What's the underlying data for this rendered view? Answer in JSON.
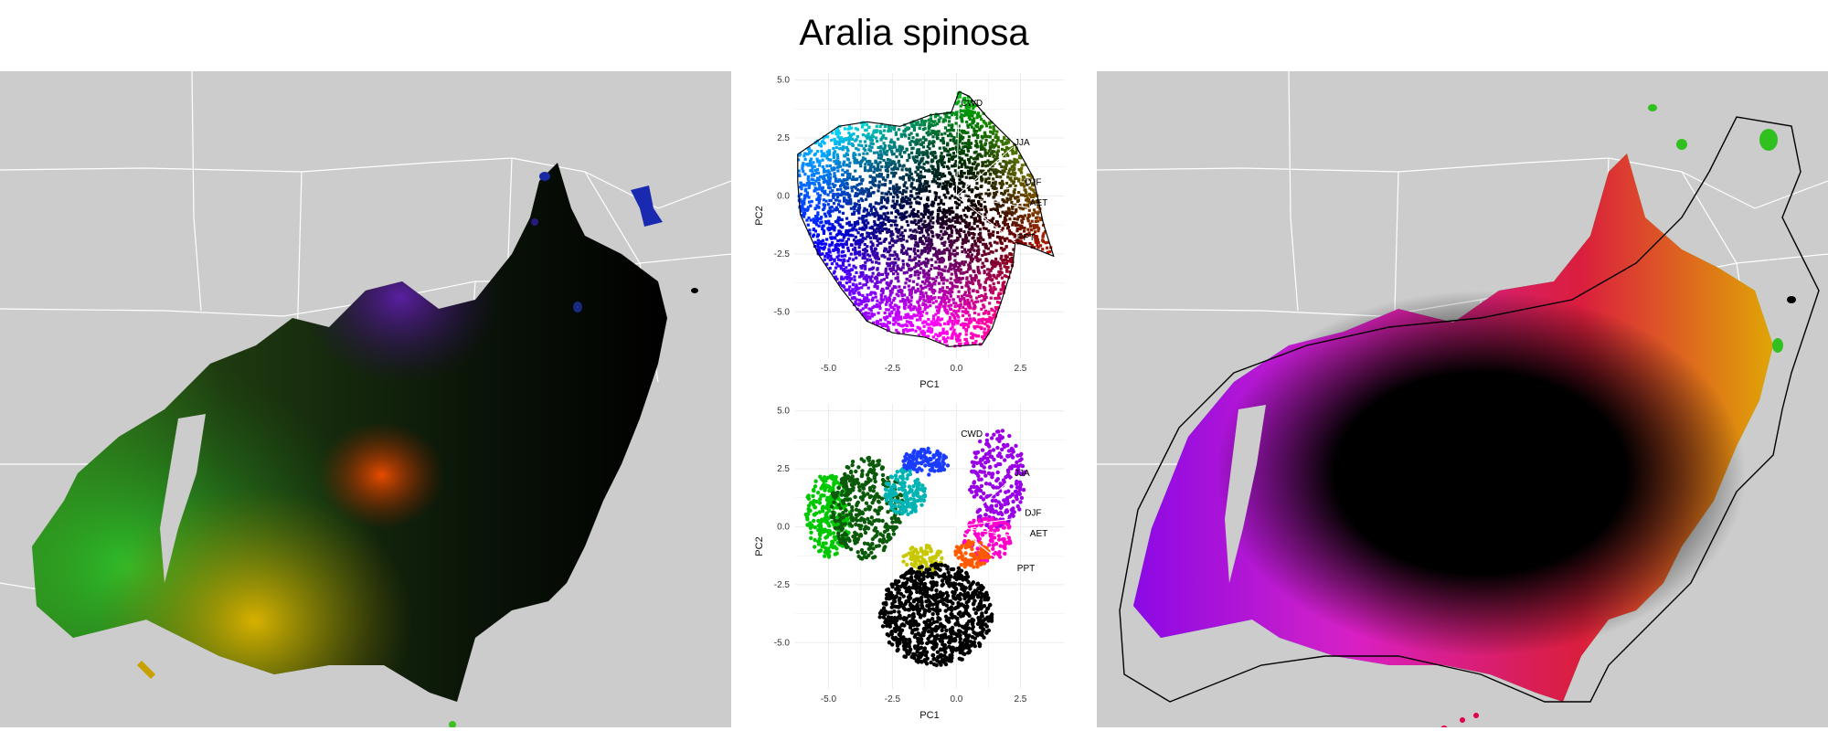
{
  "figure": {
    "title": "Aralia spinosa",
    "colors": {
      "map_land": "#cccccc",
      "state_borders": "#ffffff",
      "hull_outline": "#000000",
      "grid": "#ebebeb",
      "loading_arrows": "#ffffff"
    }
  },
  "chart_data": [
    {
      "type": "map",
      "panel": "left",
      "description_visible": "species range map colored by climate PCA"
    },
    {
      "type": "scatter",
      "panel": "pca-top",
      "xlabel": "PC1",
      "ylabel": "PC2",
      "xlim": [
        -6.3,
        4.2
      ],
      "ylim": [
        -7.0,
        5.3
      ],
      "xticks": [
        -5.0,
        -2.5,
        0.0,
        2.5
      ],
      "xtick_labels": [
        "-5.0",
        "-2.5",
        "0.0",
        "2.5"
      ],
      "yticks": [
        5.0,
        2.5,
        0.0,
        -2.5,
        -5.0
      ],
      "ytick_labels": [
        "5.0",
        "2.5",
        "0.0",
        "-2.5",
        "-5.0"
      ],
      "grid": true,
      "hull": [
        [
          0.1,
          4.5
        ],
        [
          0.5,
          4.3
        ],
        [
          1.2,
          3.4
        ],
        [
          2.3,
          2.2
        ],
        [
          3.0,
          0.8
        ],
        [
          3.4,
          -1.2
        ],
        [
          3.8,
          -2.6
        ],
        [
          2.9,
          -2.2
        ],
        [
          2.3,
          -2.0
        ],
        [
          2.2,
          -3.0
        ],
        [
          1.8,
          -4.4
        ],
        [
          1.4,
          -5.7
        ],
        [
          1.0,
          -6.4
        ],
        [
          -0.3,
          -6.5
        ],
        [
          -1.2,
          -6.1
        ],
        [
          -2.5,
          -5.9
        ],
        [
          -3.5,
          -5.4
        ],
        [
          -4.5,
          -4.0
        ],
        [
          -5.4,
          -2.5
        ],
        [
          -6.1,
          -0.8
        ],
        [
          -6.2,
          0.6
        ],
        [
          -6.2,
          1.8
        ],
        [
          -5.4,
          2.4
        ],
        [
          -4.6,
          3.0
        ],
        [
          -3.5,
          3.2
        ],
        [
          -2.2,
          3.0
        ],
        [
          -1.0,
          3.5
        ],
        [
          -0.2,
          3.6
        ]
      ],
      "loadings": [
        {
          "label": "CWD",
          "x": 0.1,
          "y": 3.8
        },
        {
          "label": "JJA",
          "x": 2.2,
          "y": 2.1
        },
        {
          "label": "DJF",
          "x": 2.6,
          "y": 0.4
        },
        {
          "label": "AET",
          "x": 2.8,
          "y": -0.5
        },
        {
          "label": "PPT",
          "x": 2.3,
          "y": -2.0
        }
      ]
    },
    {
      "type": "scatter",
      "panel": "pca-bottom",
      "xlabel": "PC1",
      "ylabel": "PC2",
      "xlim": [
        -6.3,
        4.2
      ],
      "ylim": [
        -7.0,
        5.3
      ],
      "xticks": [
        -5.0,
        -2.5,
        0.0,
        2.5
      ],
      "xtick_labels": [
        "-5.0",
        "-2.5",
        "0.0",
        "2.5"
      ],
      "yticks": [
        5.0,
        2.5,
        0.0,
        -2.5,
        -5.0
      ],
      "ytick_labels": [
        "5.0",
        "2.5",
        "0.0",
        "-2.5",
        "-5.0"
      ],
      "grid": true,
      "clusters": [
        {
          "color": "#00c800",
          "cx": -5.0,
          "cy": 0.5,
          "rx": 0.9,
          "ry": 1.8,
          "n": 260
        },
        {
          "color": "#0a5a0a",
          "cx": -3.5,
          "cy": 0.8,
          "rx": 1.4,
          "ry": 2.2,
          "n": 380
        },
        {
          "color": "#00b4b4",
          "cx": -2.0,
          "cy": 1.5,
          "rx": 0.8,
          "ry": 1.0,
          "n": 150
        },
        {
          "color": "#1a3cff",
          "cx": -1.2,
          "cy": 2.8,
          "rx": 0.9,
          "ry": 0.6,
          "n": 110
        },
        {
          "color": "#9a00e6",
          "cx": 1.6,
          "cy": 2.0,
          "rx": 1.1,
          "ry": 2.2,
          "n": 260
        },
        {
          "color": "#ff00cc",
          "cx": 1.2,
          "cy": -0.5,
          "rx": 1.0,
          "ry": 1.0,
          "n": 120
        },
        {
          "color": "#ff5a00",
          "cx": 0.6,
          "cy": -1.2,
          "rx": 0.7,
          "ry": 0.6,
          "n": 90
        },
        {
          "color": "#c8c800",
          "cx": -1.3,
          "cy": -1.4,
          "rx": 0.8,
          "ry": 0.6,
          "n": 90
        },
        {
          "color": "#000000",
          "cx": -0.8,
          "cy": -3.8,
          "rx": 2.2,
          "ry": 2.2,
          "n": 900
        }
      ],
      "loadings": [
        {
          "label": "CWD",
          "x": 0.1,
          "y": 3.8
        },
        {
          "label": "JJA",
          "x": 2.2,
          "y": 2.1
        },
        {
          "label": "DJF",
          "x": 2.6,
          "y": 0.4
        },
        {
          "label": "AET",
          "x": 2.8,
          "y": -0.5
        },
        {
          "label": "PPT",
          "x": 2.3,
          "y": -2.0
        }
      ]
    },
    {
      "type": "map",
      "panel": "right",
      "description_visible": "species range map colored by climate PCA with convex hull"
    }
  ]
}
